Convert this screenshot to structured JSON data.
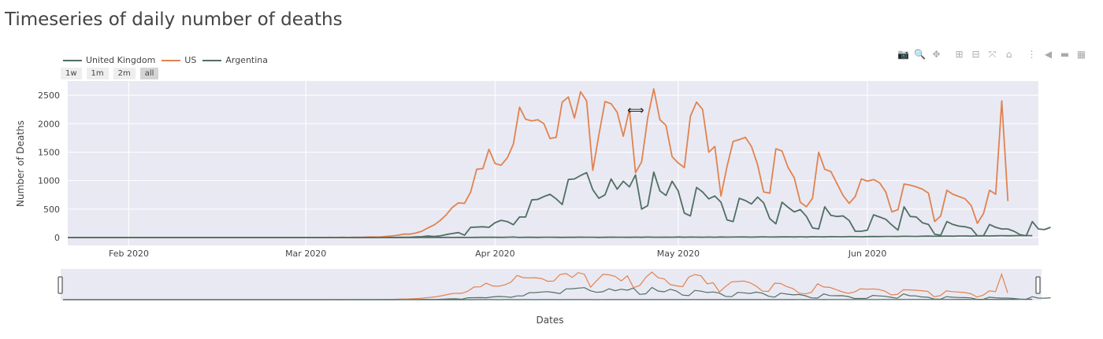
{
  "title": "Timeseries of daily number of deaths",
  "modebar": [
    {
      "icon": "camera-icon",
      "glyph": "📷",
      "active": false
    },
    {
      "icon": "zoom-icon",
      "glyph": "🔍",
      "active": true
    },
    {
      "icon": "pan-icon",
      "glyph": "✥",
      "active": false
    },
    {
      "icon": "zoom-in-icon",
      "glyph": "⊞",
      "active": false
    },
    {
      "icon": "zoom-out-icon",
      "glyph": "⊟",
      "active": false
    },
    {
      "icon": "autoscale-icon",
      "glyph": "⤧",
      "active": false
    },
    {
      "icon": "reset-axes-icon",
      "glyph": "⌂",
      "active": false
    },
    {
      "icon": "toggle-spike-lines-icon",
      "glyph": "⋮",
      "active": false
    },
    {
      "icon": "hover-closest-icon",
      "glyph": "◀",
      "active": false
    },
    {
      "icon": "hover-compare-icon",
      "glyph": "▬",
      "active": false
    },
    {
      "icon": "plotly-logo-icon",
      "glyph": "▦",
      "active": false
    }
  ],
  "range_selector": {
    "buttons": [
      "1w",
      "1m",
      "2m",
      "all"
    ],
    "active": "all"
  },
  "colors": {
    "uk": "#4f6f62",
    "us": "#e0834f",
    "argentina": "#4f6f62",
    "plot_bg": "#e9e9f3",
    "grid": "#ffffff"
  },
  "chart_data": {
    "type": "line",
    "title": "",
    "xlabel": "Dates",
    "ylabel": "Number of Deaths",
    "x_start": "2020-01-22",
    "x_range": [
      "2020-01-22",
      "2020-06-29"
    ],
    "ylim": [
      0,
      2750
    ],
    "x_ticks": [
      {
        "date": "2020-02-01",
        "label": "Feb 2020"
      },
      {
        "date": "2020-03-01",
        "label": "Mar 2020"
      },
      {
        "date": "2020-04-01",
        "label": "Apr 2020"
      },
      {
        "date": "2020-05-01",
        "label": "May 2020"
      },
      {
        "date": "2020-06-01",
        "label": "Jun 2020"
      }
    ],
    "y_ticks": [
      0,
      500,
      1000,
      1500,
      2000,
      2500
    ],
    "grid": true,
    "legend_position": "top-left",
    "rangeslider": true,
    "series": [
      {
        "name": "United Kingdom",
        "color_key": "uk",
        "values": [
          0,
          0,
          0,
          0,
          0,
          0,
          0,
          0,
          0,
          0,
          0,
          0,
          0,
          0,
          0,
          0,
          0,
          0,
          0,
          0,
          0,
          0,
          0,
          0,
          0,
          0,
          0,
          0,
          0,
          0,
          0,
          0,
          0,
          0,
          0,
          0,
          0,
          0,
          0,
          0,
          0,
          0,
          0,
          0,
          0,
          0,
          0,
          1,
          0,
          1,
          0,
          2,
          1,
          2,
          3,
          5,
          4,
          13,
          15,
          27,
          20,
          29,
          52,
          71,
          87,
          40,
          180,
          184,
          190,
          180,
          261,
          302,
          280,
          225,
          360,
          360,
          660,
          670,
          720,
          760,
          680,
          580,
          1020,
          1030,
          1090,
          1140,
          840,
          690,
          750,
          1030,
          850,
          990,
          890,
          1100,
          500,
          560,
          1150,
          820,
          740,
          990,
          820,
          430,
          380,
          880,
          800,
          680,
          730,
          620,
          310,
          280,
          690,
          650,
          590,
          710,
          610,
          330,
          240,
          620,
          530,
          450,
          490,
          370,
          170,
          150,
          540,
          390,
          370,
          380,
          300,
          110,
          110,
          130,
          400,
          360,
          320,
          220,
          130,
          540,
          370,
          360,
          260,
          230,
          60,
          40,
          280,
          230,
          200,
          190,
          160,
          30,
          30,
          230,
          180,
          150,
          150,
          110,
          50,
          30,
          280,
          150,
          140,
          180
        ]
      },
      {
        "name": "US",
        "color_key": "us",
        "values": [
          0,
          0,
          0,
          0,
          0,
          0,
          0,
          0,
          0,
          0,
          0,
          0,
          0,
          0,
          0,
          0,
          0,
          0,
          0,
          0,
          0,
          0,
          0,
          0,
          0,
          0,
          0,
          0,
          0,
          0,
          0,
          0,
          0,
          0,
          0,
          0,
          0,
          0,
          1,
          0,
          1,
          1,
          2,
          3,
          1,
          4,
          2,
          5,
          5,
          8,
          10,
          8,
          20,
          28,
          40,
          60,
          60,
          80,
          110,
          170,
          220,
          300,
          400,
          530,
          610,
          600,
          800,
          1200,
          1210,
          1550,
          1300,
          1270,
          1400,
          1640,
          2290,
          2080,
          2050,
          2070,
          2000,
          1740,
          1760,
          2380,
          2470,
          2100,
          2560,
          2400,
          1180,
          1800,
          2390,
          2350,
          2200,
          1780,
          2250,
          1140,
          1330,
          2100,
          2610,
          2070,
          1970,
          1420,
          1310,
          1230,
          2130,
          2380,
          2250,
          1500,
          1600,
          730,
          1250,
          1690,
          1720,
          1760,
          1600,
          1280,
          800,
          780,
          1560,
          1520,
          1230,
          1050,
          620,
          540,
          690,
          1500,
          1200,
          1160,
          950,
          740,
          600,
          720,
          1030,
          990,
          1020,
          960,
          800,
          450,
          490,
          940,
          920,
          890,
          850,
          780,
          280,
          380,
          830,
          760,
          720,
          680,
          560,
          250,
          420,
          830,
          760,
          2400,
          640
        ]
      },
      {
        "name": "Argentina",
        "color_key": "argentina",
        "values": [
          0,
          0,
          0,
          0,
          0,
          0,
          0,
          0,
          0,
          0,
          0,
          0,
          0,
          0,
          0,
          0,
          0,
          0,
          0,
          0,
          0,
          0,
          0,
          0,
          0,
          0,
          0,
          0,
          0,
          0,
          0,
          0,
          0,
          0,
          0,
          0,
          0,
          0,
          0,
          0,
          0,
          0,
          0,
          0,
          0,
          0,
          0,
          0,
          0,
          0,
          1,
          0,
          0,
          0,
          1,
          0,
          1,
          0,
          1,
          1,
          2,
          1,
          3,
          2,
          3,
          1,
          2,
          3,
          5,
          4,
          4,
          3,
          5,
          8,
          2,
          6,
          4,
          3,
          5,
          6,
          4,
          3,
          6,
          4,
          7,
          5,
          6,
          3,
          4,
          7,
          6,
          5,
          4,
          7,
          4,
          8,
          5,
          6,
          7,
          5,
          9,
          6,
          8,
          7,
          6,
          8,
          5,
          9,
          7,
          8,
          9,
          10,
          7,
          9,
          12,
          8,
          10,
          11,
          13,
          9,
          12,
          10,
          14,
          13,
          11,
          15,
          14,
          12,
          16,
          15,
          13,
          17,
          18,
          16,
          19,
          20,
          18,
          22,
          21,
          19,
          23,
          25,
          22,
          24,
          26,
          24,
          28,
          27,
          25,
          29,
          30,
          28,
          31,
          33,
          30,
          32,
          35,
          34,
          33
        ]
      }
    ]
  }
}
